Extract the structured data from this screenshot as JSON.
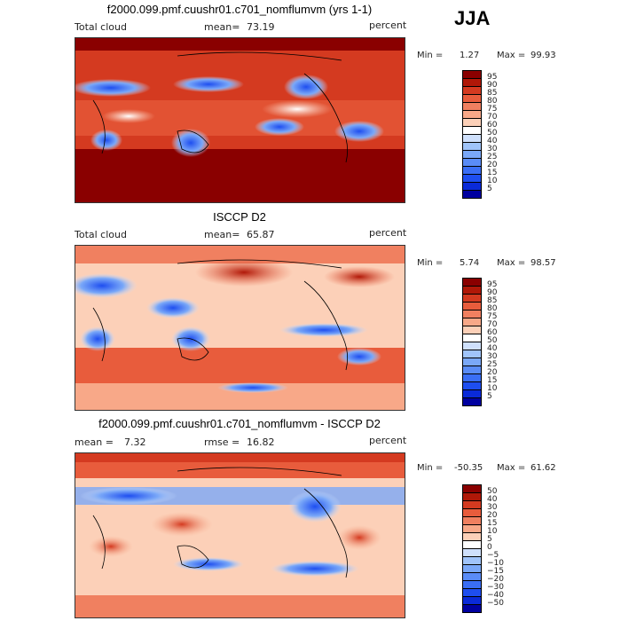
{
  "season": "JJA",
  "chart_data": [
    {
      "type": "heatmap",
      "title": "f2000.099.pmf.cuushr01.c701_nomflumvm (yrs 1-1)",
      "left_label": "Total cloud",
      "stat_label": "mean=",
      "stat_value": "73.19",
      "units": "percent",
      "min_label": "Min =",
      "min": "1.27",
      "max_label": "Max =",
      "max": "99.93",
      "colorbar": {
        "levels": [
          "5",
          "10",
          "15",
          "20",
          "25",
          "30",
          "40",
          "50",
          "60",
          "70",
          "75",
          "80",
          "85",
          "90",
          "95"
        ],
        "colors": [
          "#0000a0",
          "#0a2ad8",
          "#1e4ef0",
          "#3a6ef5",
          "#5a8cf7",
          "#7aa8f8",
          "#a0c4fa",
          "#cfe0fc",
          "#ffffff",
          "#fcd0b8",
          "#f8a888",
          "#f08060",
          "#e85c3c",
          "#d43a20",
          "#b01808",
          "#8a0000"
        ]
      }
    },
    {
      "type": "heatmap",
      "title": "ISCCP D2",
      "left_label": "Total cloud",
      "stat_label": "mean=",
      "stat_value": "65.87",
      "units": "percent",
      "min_label": "Min =",
      "min": "5.74",
      "max_label": "Max =",
      "max": "98.57",
      "colorbar": {
        "levels": [
          "5",
          "10",
          "15",
          "20",
          "25",
          "30",
          "40",
          "50",
          "60",
          "70",
          "75",
          "80",
          "85",
          "90",
          "95"
        ],
        "colors": [
          "#0000a0",
          "#0a2ad8",
          "#1e4ef0",
          "#3a6ef5",
          "#5a8cf7",
          "#7aa8f8",
          "#a0c4fa",
          "#cfe0fc",
          "#ffffff",
          "#fcd0b8",
          "#f8a888",
          "#f08060",
          "#e85c3c",
          "#d43a20",
          "#b01808",
          "#8a0000"
        ]
      }
    },
    {
      "type": "heatmap",
      "title": "f2000.099.pmf.cuushr01.c701_nomflumvm - ISCCP D2",
      "left_label": "mean =",
      "left_value": "7.32",
      "stat_label": "rmse =",
      "stat_value": "16.82",
      "units": "percent",
      "min_label": "Min =",
      "min": "-50.35",
      "max_label": "Max =",
      "max": "61.62",
      "colorbar": {
        "levels": [
          "−50",
          "−40",
          "−30",
          "−20",
          "−15",
          "−10",
          "−5",
          "0",
          "5",
          "10",
          "15",
          "20",
          "30",
          "40",
          "50"
        ],
        "colors": [
          "#0000a0",
          "#0a2ad8",
          "#1e4ef0",
          "#3a6ef5",
          "#5a8cf7",
          "#7aa8f8",
          "#a0c4fa",
          "#cfe0fc",
          "#ffffff",
          "#fcd0b8",
          "#f8a888",
          "#f08060",
          "#e85c3c",
          "#d43a20",
          "#b01808",
          "#8a0000"
        ]
      }
    }
  ]
}
